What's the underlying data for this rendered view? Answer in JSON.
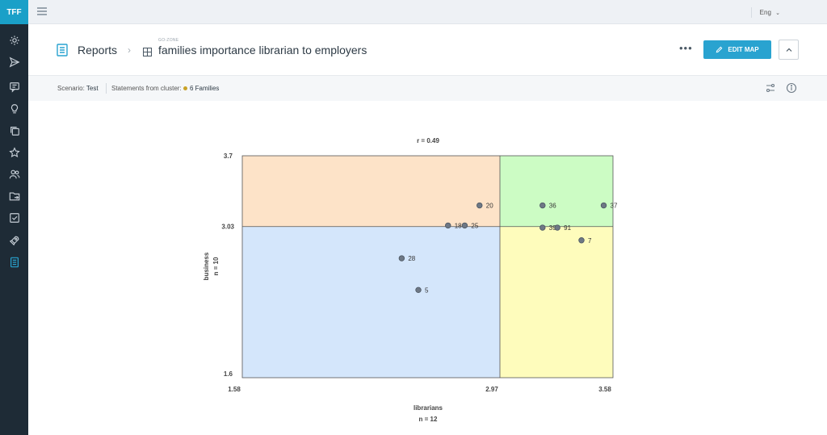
{
  "app": {
    "logo": "TFF",
    "language": "Eng"
  },
  "sidebar": {
    "items": [
      {
        "name": "settings-icon",
        "active": false
      },
      {
        "name": "send-icon",
        "active": false
      },
      {
        "name": "comments-icon",
        "active": false
      },
      {
        "name": "lightbulb-icon",
        "active": false
      },
      {
        "name": "copy-icon",
        "active": false
      },
      {
        "name": "star-icon",
        "active": false
      },
      {
        "name": "users-icon",
        "active": false
      },
      {
        "name": "folder-share-icon",
        "active": false
      },
      {
        "name": "checkbox-icon",
        "active": false
      },
      {
        "name": "rocket-icon",
        "active": false
      },
      {
        "name": "reports-icon",
        "active": true
      }
    ]
  },
  "header": {
    "breadcrumb": "Reports",
    "zone": "GO-ZONE",
    "title": "families importance librarian to employers",
    "more": "•••",
    "edit_button": "EDIT MAP"
  },
  "scenario": {
    "scenario_label": "Scenario:",
    "scenario_value": "Test",
    "cluster_label": "Statements from cluster:",
    "cluster_value": "6 Families",
    "cluster_color": "#c9a227"
  },
  "chart_data": {
    "type": "scatter",
    "title": "r = 0.49",
    "xlabel": "librarians",
    "xlabel_n": "n = 12",
    "ylabel": "business",
    "ylabel_n": "n = 10",
    "xlim": [
      1.58,
      3.58
    ],
    "ylim": [
      1.6,
      3.7
    ],
    "x_mean": 2.97,
    "y_mean": 3.03,
    "x_ticks": [
      "1.58",
      "2.97",
      "3.58"
    ],
    "y_ticks": [
      "1.6",
      "3.03",
      "3.7"
    ],
    "quadrant_colors": {
      "top_left": "#fde3c8",
      "top_right": "#ccfcc4",
      "bottom_left": "#d4e6fb",
      "bottom_right": "#fefcbc"
    },
    "points": [
      {
        "label": "20",
        "x": 2.86,
        "y": 3.23
      },
      {
        "label": "18",
        "x": 2.69,
        "y": 3.04
      },
      {
        "label": "25",
        "x": 2.78,
        "y": 3.04
      },
      {
        "label": "28",
        "x": 2.44,
        "y": 2.73
      },
      {
        "label": "5",
        "x": 2.53,
        "y": 2.43
      },
      {
        "label": "36",
        "x": 3.2,
        "y": 3.23
      },
      {
        "label": "37",
        "x": 3.53,
        "y": 3.23
      },
      {
        "label": "39",
        "x": 3.2,
        "y": 3.02
      },
      {
        "label": "91",
        "x": 3.28,
        "y": 3.02
      },
      {
        "label": "7",
        "x": 3.41,
        "y": 2.9
      }
    ]
  }
}
